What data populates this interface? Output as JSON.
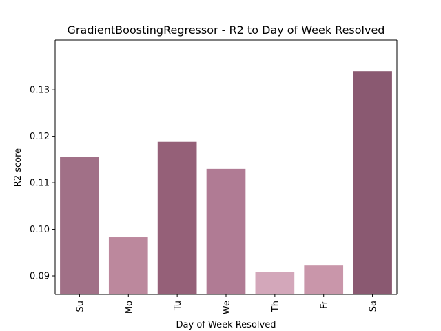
{
  "chart_data": {
    "type": "bar",
    "title": "GradientBoostingRegressor - R2 to Day of Week Resolved",
    "xlabel": "Day of Week Resolved",
    "ylabel": "R2 score",
    "categories": [
      "Su",
      "Mo",
      "Tu",
      "We",
      "Th",
      "Fr",
      "Sa"
    ],
    "values": [
      0.1155,
      0.0983,
      0.1188,
      0.113,
      0.0908,
      0.0922,
      0.134
    ],
    "colors": [
      "#a17087",
      "#bc889d",
      "#956078",
      "#b07b94",
      "#d3a7ba",
      "#c996aa",
      "#8a5971"
    ],
    "ylim": [
      0.086,
      0.1407
    ],
    "yticks": [
      0.09,
      0.1,
      0.11,
      0.12,
      0.13
    ],
    "ytick_labels": [
      "0.09",
      "0.10",
      "0.11",
      "0.12",
      "0.13"
    ],
    "grid": false,
    "legend": "none"
  }
}
